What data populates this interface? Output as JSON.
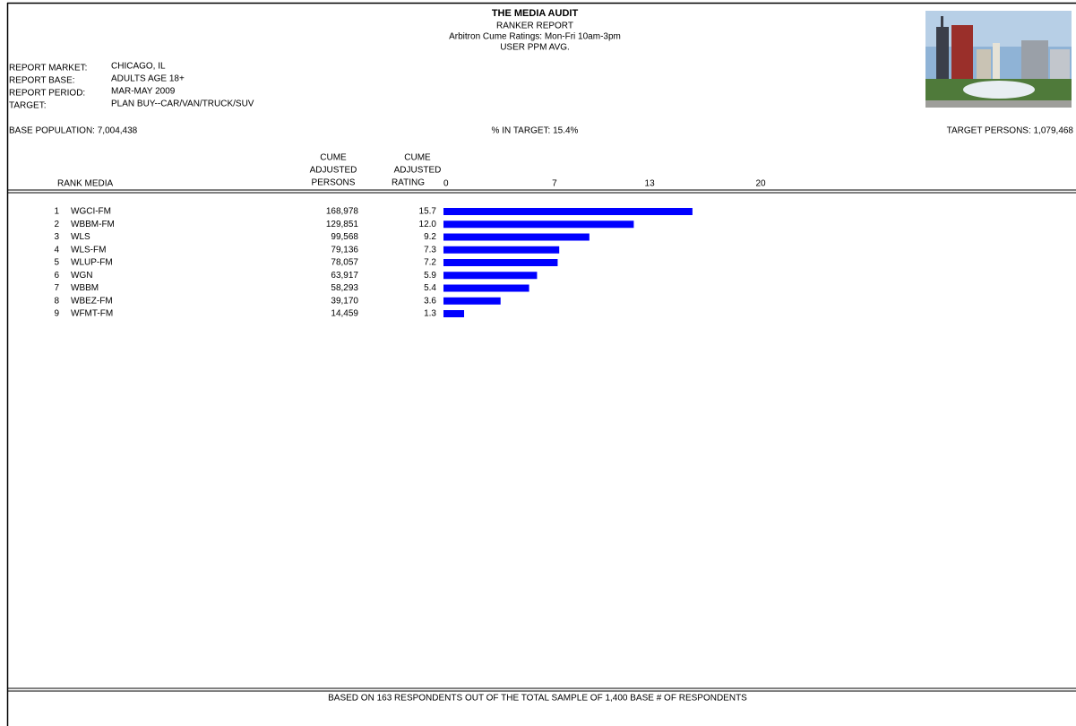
{
  "header": {
    "title": "THE MEDIA AUDIT",
    "lines": [
      "RANKER REPORT",
      "Arbitron Cume Ratings: Mon-Fri 10am-3pm",
      "USER PPM AVG."
    ]
  },
  "report_info": [
    {
      "label": "REPORT MARKET:",
      "value": "CHICAGO, IL"
    },
    {
      "label": "REPORT BASE:",
      "value": "ADULTS AGE 18+"
    },
    {
      "label": "REPORT PERIOD:",
      "value": "MAR-MAY 2009"
    },
    {
      "label": "TARGET:",
      "value": "PLAN BUY--CAR/VAN/TRUCK/SUV"
    }
  ],
  "summary": {
    "base_population": "BASE POPULATION: 7,004,438",
    "in_target": "% IN TARGET: 15.4%",
    "target_persons": "TARGET PERSONS: 1,079,468"
  },
  "table": {
    "rank_media_header": "RANK MEDIA",
    "persons_header": [
      "CUME",
      "ADJUSTED",
      "PERSONS"
    ],
    "rating_header": [
      "CUME",
      "ADJUSTED",
      "RATING"
    ],
    "ranks": [
      1,
      2,
      3,
      4,
      5,
      6,
      7,
      8,
      9
    ],
    "persons": [
      "168,978",
      "129,851",
      "99,568",
      "79,136",
      "78,057",
      "63,917",
      "58,293",
      "39,170",
      "14,459"
    ]
  },
  "chart_data": {
    "type": "bar",
    "orientation": "horizontal",
    "categories": [
      "WGCI-FM",
      "WBBM-FM",
      "WLS",
      "WLS-FM",
      "WLUP-FM",
      "WGN",
      "WBBM",
      "WBEZ-FM",
      "WFMT-FM"
    ],
    "values": [
      15.7,
      12.0,
      9.2,
      7.3,
      7.2,
      5.9,
      5.4,
      3.6,
      1.3
    ],
    "value_labels": [
      "15.7",
      "12.0",
      "9.2",
      "7.3",
      "7.2",
      "5.9",
      "5.4",
      "3.6",
      "1.3"
    ],
    "xlim": [
      0,
      20
    ],
    "xticks": [
      0,
      7,
      13,
      20
    ],
    "color": "#0000ff"
  },
  "footer": "BASED ON 163 RESPONDENTS OUT OF THE TOTAL SAMPLE OF 1,400 BASE # OF RESPONDENTS"
}
